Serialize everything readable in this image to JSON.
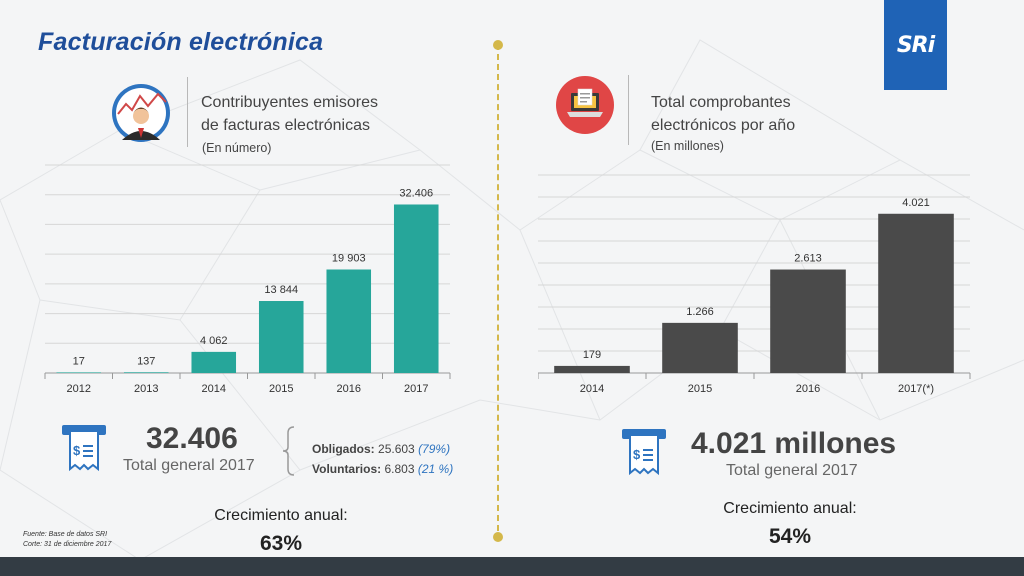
{
  "title": "Facturación electrónica",
  "logo_text": "SRi",
  "left": {
    "subtitle_line1": "Contribuyentes emisores",
    "subtitle_line2": "de facturas electrónicas",
    "unit": "(En número)",
    "total_value": "32.406",
    "total_label": "Total general 2017",
    "breakdown": [
      {
        "label": "Obligados:",
        "value": "25.603",
        "pct": "(79%)"
      },
      {
        "label": "Voluntarios:",
        "value": "6.803",
        "pct": "(21 %)"
      }
    ],
    "growth_label": "Crecimiento anual:",
    "growth_value": "63%",
    "footnote_line1": "Fuente: Base de datos  SRI",
    "footnote_line2": "Corte: 31 de diciembre 2017"
  },
  "right": {
    "subtitle_line1": "Total comprobantes",
    "subtitle_line2": "electrónicos por año",
    "unit": "(En millones)",
    "total_value": "4.021 millones",
    "total_label": "Total general 2017",
    "growth_label": "Crecimiento anual:",
    "growth_value": "54%"
  },
  "colors": {
    "teal": "#26a69a",
    "dark": "#4a4a4a",
    "brand": "#1f63b6",
    "title": "#1f4e9a",
    "accent": "#d4b84a"
  },
  "icons": [
    "businessman-chart-icon",
    "laptop-document-icon",
    "receipt-icon"
  ],
  "chart_data": [
    {
      "type": "bar",
      "categories": [
        "2012",
        "2013",
        "2014",
        "2015",
        "2016",
        "2017"
      ],
      "values": [
        17,
        137,
        4062,
        13844,
        19903,
        32406
      ],
      "labels": [
        "17",
        "137",
        "4 062",
        "13 844",
        "19 903",
        "32.406"
      ],
      "ylim": [
        0,
        40000
      ],
      "grid": true,
      "color": "#26a69a"
    },
    {
      "type": "bar",
      "categories": [
        "2014",
        "2015",
        "2016",
        "2017(*)"
      ],
      "values": [
        179,
        1266,
        2613,
        4021
      ],
      "labels": [
        "179",
        "1.266",
        "2.613",
        "4.021"
      ],
      "ylim": [
        0,
        5000
      ],
      "grid": true,
      "color": "#4a4a4a"
    }
  ]
}
